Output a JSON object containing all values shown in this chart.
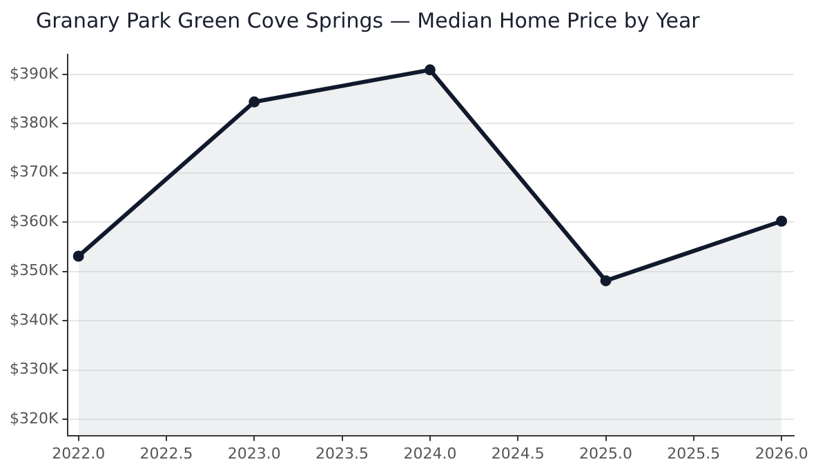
{
  "chart_data": {
    "type": "area",
    "title": "Granary Park Green Cove Springs — Median Home Price by Year",
    "x": [
      2022,
      2023,
      2024,
      2025,
      2026
    ],
    "series": [
      {
        "color": "#111a2c",
        "values": [
          353100,
          384400,
          390900,
          348100,
          360200
        ]
      }
    ],
    "xlim": [
      2021.94,
      2026.07
    ],
    "xticks": [
      {
        "value": 2022,
        "label": "2022.0"
      },
      {
        "value": 2022.5,
        "label": "2022.5"
      },
      {
        "value": 2023,
        "label": "2023.0"
      },
      {
        "value": 2023.5,
        "label": "2023.5"
      },
      {
        "value": 2024,
        "label": "2024.0"
      },
      {
        "value": 2024.5,
        "label": "2024.5"
      },
      {
        "value": 2025,
        "label": "2025.0"
      },
      {
        "value": 2025.5,
        "label": "2025.5"
      },
      {
        "value": 2026,
        "label": "2026.0"
      }
    ],
    "ylim": [
      316700,
      394000
    ],
    "yticks": [
      {
        "value": 320000,
        "label": "$320K"
      },
      {
        "value": 330000,
        "label": "$330K"
      },
      {
        "value": 340000,
        "label": "$340K"
      },
      {
        "value": 350000,
        "label": "$350K"
      },
      {
        "value": 360000,
        "label": "$360K"
      },
      {
        "value": 370000,
        "label": "$370K"
      },
      {
        "value": 380000,
        "label": "$380K"
      },
      {
        "value": 390000,
        "label": "$390K"
      }
    ],
    "grid": "y",
    "legend": false,
    "marker": "circle",
    "line_style": "solid"
  }
}
